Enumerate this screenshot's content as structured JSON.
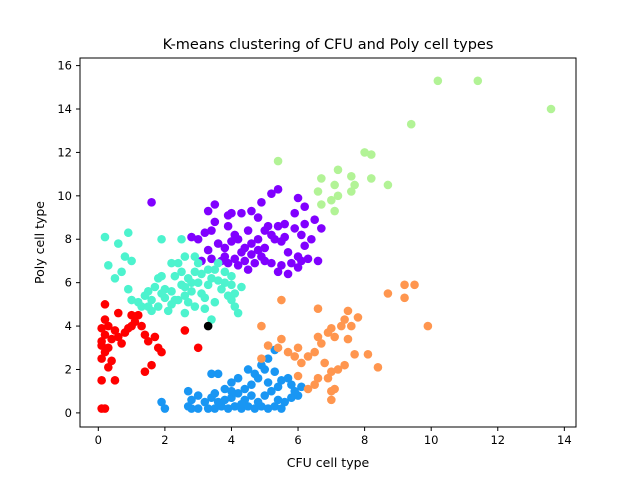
{
  "chart_data": {
    "type": "scatter",
    "title": "K-means clustering of CFU and Poly cell types",
    "xlabel": "CFU cell type",
    "ylabel": "Poly cell type",
    "xlim": [
      -0.55,
      14.35
    ],
    "ylim": [
      -0.65,
      16.35
    ],
    "xticks": [
      "0",
      "2",
      "4",
      "6",
      "8",
      "10",
      "12",
      "14"
    ],
    "yticks": [
      "0",
      "2",
      "4",
      "6",
      "8",
      "10",
      "12",
      "14",
      "16"
    ],
    "grid": false,
    "legend": false,
    "series": [
      {
        "color": "#8000ff",
        "points": [
          [
            1.6,
            9.7
          ],
          [
            3.3,
            9.3
          ],
          [
            3.5,
            9.6
          ],
          [
            3.5,
            8.8
          ],
          [
            3.9,
            9.1
          ],
          [
            3.9,
            8.6
          ],
          [
            4.0,
            9.2
          ],
          [
            4.1,
            8.2
          ],
          [
            4.3,
            9.2
          ],
          [
            4.6,
            9.3
          ],
          [
            4.8,
            9.0
          ],
          [
            4.9,
            9.7
          ],
          [
            5.2,
            10.1
          ],
          [
            5.4,
            10.3
          ],
          [
            5.0,
            8.4
          ],
          [
            5.2,
            8.2
          ],
          [
            5.4,
            8.6
          ],
          [
            5.6,
            8.7
          ],
          [
            5.9,
            8.5
          ],
          [
            6.2,
            8.7
          ],
          [
            6.5,
            8.9
          ],
          [
            6.4,
            8.0
          ],
          [
            6.7,
            8.5
          ],
          [
            6.6,
            7.0
          ],
          [
            6.2,
            7.7
          ],
          [
            6.0,
            7.2
          ],
          [
            5.7,
            7.4
          ],
          [
            5.5,
            7.9
          ],
          [
            5.3,
            8.0
          ],
          [
            5.0,
            7.6
          ],
          [
            4.8,
            7.5
          ],
          [
            4.6,
            7.3
          ],
          [
            4.4,
            7.0
          ],
          [
            4.2,
            6.8
          ],
          [
            3.9,
            6.9
          ],
          [
            3.7,
            7.0
          ],
          [
            3.4,
            7.1
          ],
          [
            3.3,
            7.5
          ],
          [
            3.1,
            7.0
          ],
          [
            2.8,
            8.1
          ],
          [
            3.0,
            8.0
          ],
          [
            3.2,
            8.3
          ],
          [
            3.4,
            8.4
          ],
          [
            3.6,
            7.8
          ],
          [
            3.8,
            7.6
          ],
          [
            4.0,
            7.9
          ],
          [
            4.2,
            8.0
          ],
          [
            4.4,
            7.6
          ],
          [
            4.6,
            7.8
          ],
          [
            4.8,
            8.0
          ],
          [
            5.0,
            7.0
          ],
          [
            5.2,
            6.9
          ],
          [
            5.4,
            6.5
          ],
          [
            5.5,
            6.8
          ],
          [
            5.7,
            6.4
          ],
          [
            5.8,
            6.9
          ],
          [
            6.0,
            6.7
          ],
          [
            6.1,
            7.0
          ],
          [
            6.3,
            7.1
          ],
          [
            6.0,
            9.9
          ],
          [
            6.2,
            9.5
          ],
          [
            5.9,
            9.2
          ],
          [
            4.5,
            6.6
          ],
          [
            4.7,
            6.9
          ],
          [
            4.3,
            7.4
          ],
          [
            4.1,
            7.1
          ],
          [
            3.8,
            7.2
          ],
          [
            5.1,
            8.6
          ],
          [
            5.6,
            8.1
          ],
          [
            6.1,
            8.2
          ],
          [
            4.9,
            7.2
          ],
          [
            4.5,
            8.4
          ]
        ]
      },
      {
        "color": "#4df3ce",
        "points": [
          [
            0.2,
            8.1
          ],
          [
            0.9,
            8.3
          ],
          [
            0.6,
            7.8
          ],
          [
            1.9,
            8.0
          ],
          [
            2.5,
            8.0
          ],
          [
            0.3,
            6.8
          ],
          [
            0.5,
            6.2
          ],
          [
            0.7,
            6.5
          ],
          [
            0.8,
            7.2
          ],
          [
            1.0,
            7.0
          ],
          [
            0.9,
            5.7
          ],
          [
            1.0,
            5.2
          ],
          [
            1.2,
            5.1
          ],
          [
            1.3,
            4.9
          ],
          [
            1.5,
            4.9
          ],
          [
            1.6,
            5.2
          ],
          [
            1.5,
            5.6
          ],
          [
            1.7,
            5.8
          ],
          [
            1.8,
            6.2
          ],
          [
            1.9,
            6.3
          ],
          [
            2.0,
            5.7
          ],
          [
            2.0,
            5.3
          ],
          [
            2.2,
            5.0
          ],
          [
            2.2,
            5.6
          ],
          [
            2.3,
            6.3
          ],
          [
            2.2,
            6.9
          ],
          [
            2.4,
            6.9
          ],
          [
            2.5,
            6.5
          ],
          [
            2.5,
            5.9
          ],
          [
            2.6,
            5.4
          ],
          [
            2.7,
            5.1
          ],
          [
            2.8,
            5.6
          ],
          [
            2.8,
            6.0
          ],
          [
            2.9,
            6.5
          ],
          [
            3.0,
            6.9
          ],
          [
            3.0,
            6.0
          ],
          [
            3.1,
            5.5
          ],
          [
            3.2,
            5.3
          ],
          [
            3.3,
            5.9
          ],
          [
            3.4,
            6.2
          ],
          [
            3.5,
            6.6
          ],
          [
            3.6,
            6.1
          ],
          [
            3.7,
            5.7
          ],
          [
            3.8,
            6.0
          ],
          [
            3.8,
            6.5
          ],
          [
            3.9,
            5.4
          ],
          [
            4.0,
            5.9
          ],
          [
            4.0,
            6.3
          ],
          [
            4.1,
            5.5
          ],
          [
            4.1,
            4.9
          ],
          [
            4.2,
            4.6
          ],
          [
            4.3,
            5.8
          ],
          [
            3.4,
            4.3
          ],
          [
            3.2,
            4.8
          ],
          [
            2.9,
            4.9
          ],
          [
            2.6,
            4.6
          ],
          [
            2.4,
            5.2
          ],
          [
            2.1,
            4.7
          ],
          [
            1.8,
            4.9
          ],
          [
            1.9,
            5.5
          ],
          [
            2.3,
            5.2
          ],
          [
            2.7,
            6.2
          ],
          [
            3.6,
            6.9
          ],
          [
            2.6,
            7.2
          ],
          [
            2.9,
            7.2
          ],
          [
            3.3,
            6.6
          ],
          [
            3.5,
            5.1
          ],
          [
            4.0,
            5.2
          ],
          [
            1.4,
            5.4
          ],
          [
            1.6,
            4.7
          ],
          [
            2.6,
            5.8
          ],
          [
            3.1,
            6.4
          ]
        ]
      },
      {
        "color": "#ff0000",
        "points": [
          [
            0.1,
            0.2
          ],
          [
            0.2,
            0.2
          ],
          [
            0.1,
            1.5
          ],
          [
            0.5,
            1.5
          ],
          [
            0.3,
            2.1
          ],
          [
            0.1,
            2.5
          ],
          [
            0.2,
            2.8
          ],
          [
            0.1,
            3.1
          ],
          [
            0.3,
            3.0
          ],
          [
            0.4,
            3.4
          ],
          [
            0.2,
            3.6
          ],
          [
            0.1,
            3.9
          ],
          [
            0.3,
            4.0
          ],
          [
            0.5,
            3.8
          ],
          [
            0.6,
            3.5
          ],
          [
            0.7,
            3.2
          ],
          [
            0.8,
            3.7
          ],
          [
            0.9,
            3.9
          ],
          [
            1.0,
            4.0
          ],
          [
            1.1,
            4.2
          ],
          [
            1.0,
            4.5
          ],
          [
            1.2,
            4.5
          ],
          [
            1.3,
            4.0
          ],
          [
            1.4,
            3.6
          ],
          [
            1.5,
            3.3
          ],
          [
            1.6,
            2.2
          ],
          [
            1.4,
            1.9
          ],
          [
            1.8,
            3.0
          ],
          [
            1.9,
            2.8
          ],
          [
            1.7,
            3.5
          ],
          [
            2.6,
            3.8
          ],
          [
            3.0,
            3.0
          ],
          [
            0.2,
            5.0
          ],
          [
            0.6,
            4.6
          ],
          [
            0.2,
            4.3
          ],
          [
            0.1,
            3.3
          ],
          [
            0.4,
            2.4
          ]
        ]
      },
      {
        "color": "#1996f3",
        "points": [
          [
            1.9,
            0.5
          ],
          [
            2.0,
            0.2
          ],
          [
            2.7,
            1.0
          ],
          [
            2.7,
            0.3
          ],
          [
            3.0,
            0.2
          ],
          [
            3.3,
            0.2
          ],
          [
            3.5,
            0.2
          ],
          [
            3.7,
            0.3
          ],
          [
            3.9,
            0.2
          ],
          [
            4.1,
            0.3
          ],
          [
            4.3,
            0.2
          ],
          [
            4.5,
            0.3
          ],
          [
            4.7,
            0.2
          ],
          [
            4.9,
            0.3
          ],
          [
            5.1,
            0.2
          ],
          [
            5.3,
            0.3
          ],
          [
            5.5,
            0.2
          ],
          [
            5.6,
            0.5
          ],
          [
            5.8,
            0.7
          ],
          [
            6.0,
            0.8
          ],
          [
            6.1,
            1.2
          ],
          [
            5.8,
            1.3
          ],
          [
            5.5,
            1.5
          ],
          [
            5.3,
            1.9
          ],
          [
            5.0,
            2.0
          ],
          [
            4.8,
            1.6
          ],
          [
            4.6,
            1.3
          ],
          [
            4.4,
            1.1
          ],
          [
            4.2,
            0.9
          ],
          [
            4.0,
            0.7
          ],
          [
            3.8,
            0.6
          ],
          [
            3.6,
            0.5
          ],
          [
            3.4,
            0.7
          ],
          [
            3.2,
            0.5
          ],
          [
            3.0,
            0.8
          ],
          [
            2.8,
            0.6
          ],
          [
            3.4,
            1.8
          ],
          [
            3.6,
            1.8
          ],
          [
            4.0,
            1.4
          ],
          [
            4.2,
            1.6
          ],
          [
            4.5,
            2.0
          ],
          [
            4.7,
            1.8
          ],
          [
            4.9,
            2.2
          ],
          [
            5.1,
            2.5
          ],
          [
            5.3,
            2.9
          ],
          [
            5.1,
            1.4
          ],
          [
            5.2,
            1.0
          ],
          [
            4.4,
            0.6
          ],
          [
            4.6,
            0.8
          ],
          [
            4.8,
            0.5
          ],
          [
            5.0,
            0.8
          ],
          [
            5.4,
            1.2
          ],
          [
            5.9,
            1.0
          ],
          [
            4.3,
            0.4
          ],
          [
            4.0,
            1.0
          ],
          [
            3.8,
            1.1
          ],
          [
            3.5,
            0.9
          ],
          [
            2.8,
            0.2
          ],
          [
            5.7,
            1.6
          ],
          [
            5.4,
            0.6
          ]
        ]
      },
      {
        "color": "#ff964f",
        "points": [
          [
            5.5,
            5.2
          ],
          [
            4.9,
            4.0
          ],
          [
            4.9,
            2.5
          ],
          [
            5.1,
            3.1
          ],
          [
            5.4,
            3.0
          ],
          [
            5.5,
            3.4
          ],
          [
            5.7,
            2.8
          ],
          [
            5.9,
            2.6
          ],
          [
            6.0,
            3.0
          ],
          [
            6.1,
            2.3
          ],
          [
            6.3,
            2.6
          ],
          [
            6.5,
            2.8
          ],
          [
            6.6,
            3.5
          ],
          [
            6.7,
            3.2
          ],
          [
            6.9,
            3.7
          ],
          [
            7.0,
            3.9
          ],
          [
            7.1,
            3.5
          ],
          [
            7.3,
            4.0
          ],
          [
            7.4,
            4.3
          ],
          [
            7.5,
            4.7
          ],
          [
            7.6,
            4.0
          ],
          [
            7.8,
            4.4
          ],
          [
            7.7,
            2.7
          ],
          [
            7.4,
            2.2
          ],
          [
            7.2,
            2.0
          ],
          [
            7.0,
            1.9
          ],
          [
            6.9,
            1.6
          ],
          [
            6.5,
            1.3
          ],
          [
            6.3,
            1.1
          ],
          [
            6.0,
            1.7
          ],
          [
            6.6,
            1.6
          ],
          [
            7.0,
            1.0
          ],
          [
            7.0,
            0.6
          ],
          [
            7.1,
            1.1
          ],
          [
            8.1,
            2.7
          ],
          [
            8.4,
            2.1
          ],
          [
            8.7,
            5.5
          ],
          [
            9.2,
            5.9
          ],
          [
            9.5,
            5.9
          ],
          [
            9.2,
            5.3
          ],
          [
            9.9,
            4.0
          ],
          [
            6.6,
            4.8
          ],
          [
            6.8,
            2.3
          ],
          [
            7.5,
            3.4
          ]
        ]
      },
      {
        "color": "#b2f396",
        "points": [
          [
            10.2,
            15.3
          ],
          [
            11.4,
            15.3
          ],
          [
            13.6,
            14.0
          ],
          [
            9.4,
            13.3
          ],
          [
            5.4,
            11.6
          ],
          [
            8.0,
            12.0
          ],
          [
            8.2,
            11.9
          ],
          [
            7.2,
            11.2
          ],
          [
            7.6,
            10.9
          ],
          [
            6.7,
            10.8
          ],
          [
            7.7,
            10.5
          ],
          [
            7.1,
            10.5
          ],
          [
            7.6,
            10.2
          ],
          [
            8.2,
            10.8
          ],
          [
            8.7,
            10.5
          ],
          [
            6.6,
            10.2
          ],
          [
            7.2,
            10.0
          ],
          [
            7.0,
            9.8
          ],
          [
            6.7,
            9.6
          ],
          [
            7.1,
            9.3
          ]
        ]
      },
      {
        "color": "#000000",
        "points": [
          [
            3.3,
            4.0
          ]
        ]
      }
    ]
  }
}
